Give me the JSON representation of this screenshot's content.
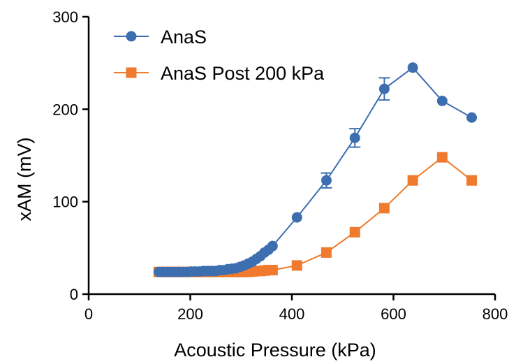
{
  "chart_data": {
    "type": "line",
    "xlabel": "Acoustic Pressure (kPa)",
    "ylabel": "xAM (mV)",
    "xlim": [
      0,
      800
    ],
    "ylim": [
      0,
      300
    ],
    "xticks": [
      0,
      200,
      400,
      600,
      800
    ],
    "yticks": [
      0,
      100,
      200,
      300
    ],
    "grid": false,
    "legend_position": "top-left",
    "series": [
      {
        "name": "AnaS",
        "color": "#3d6fb0",
        "marker": "circle",
        "x": [
          138,
          146,
          154,
          162,
          170,
          178,
          186,
          194,
          202,
          210,
          218,
          226,
          234,
          242,
          250,
          258,
          266,
          274,
          282,
          290,
          298,
          306,
          314,
          322,
          330,
          338,
          346,
          354,
          362,
          410,
          468,
          524,
          582,
          638,
          696,
          754
        ],
        "y": [
          24,
          24,
          24,
          24,
          24,
          24,
          24,
          24,
          24.5,
          24.5,
          24.5,
          25,
          25,
          25,
          25,
          26,
          26,
          27,
          27.5,
          28,
          29.5,
          31,
          33,
          35,
          38,
          41,
          45,
          48,
          52,
          83,
          123,
          169,
          222,
          245,
          209,
          191
        ],
        "err": [
          0,
          0,
          0,
          0,
          0,
          0,
          0,
          0,
          0,
          0,
          0,
          0,
          0,
          0,
          0,
          0,
          0,
          0,
          0,
          0,
          0,
          0,
          0,
          0,
          0,
          0,
          0,
          0,
          0,
          0,
          8,
          10,
          12,
          0,
          0,
          0
        ]
      },
      {
        "name": "AnaS Post 200 kPa",
        "color": "#f07a2d",
        "marker": "square",
        "x": [
          138,
          146,
          154,
          162,
          170,
          178,
          186,
          194,
          202,
          210,
          218,
          226,
          234,
          242,
          250,
          258,
          266,
          274,
          282,
          290,
          298,
          306,
          314,
          322,
          330,
          338,
          346,
          354,
          362,
          410,
          468,
          524,
          582,
          638,
          696,
          754
        ],
        "y": [
          24,
          24,
          24,
          24,
          24,
          24,
          24,
          24,
          24,
          24,
          24,
          24,
          24,
          24,
          24,
          24,
          24,
          24,
          24,
          24,
          24,
          24,
          24,
          24.5,
          25,
          25,
          25.5,
          26,
          26,
          31,
          45,
          67,
          93,
          123,
          148,
          123
        ],
        "err": [
          0,
          0,
          0,
          0,
          0,
          0,
          0,
          0,
          0,
          0,
          0,
          0,
          0,
          0,
          0,
          0,
          0,
          0,
          0,
          0,
          0,
          0,
          0,
          0,
          0,
          0,
          0,
          0,
          0,
          0,
          0,
          0,
          0,
          0,
          0,
          0
        ]
      }
    ]
  }
}
